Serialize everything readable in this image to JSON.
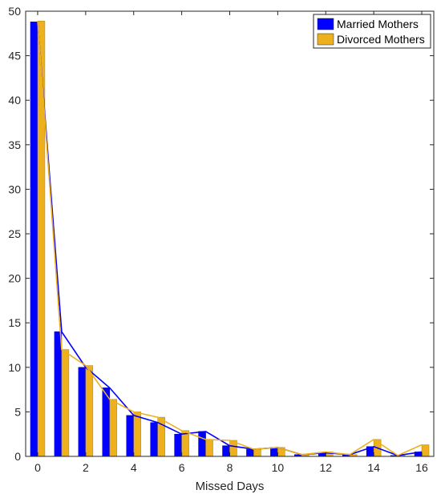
{
  "chart_data": {
    "type": "bar",
    "x": [
      0,
      1,
      2,
      3,
      4,
      5,
      6,
      7,
      8,
      9,
      10,
      11,
      12,
      13,
      14,
      15,
      16
    ],
    "series": [
      {
        "name": "Married Mothers",
        "color": "#0000ff",
        "values": [
          48.8,
          14.0,
          10.0,
          7.7,
          4.6,
          3.8,
          2.5,
          2.8,
          1.2,
          0.8,
          1.0,
          0.2,
          0.4,
          0.2,
          1.1,
          0.1,
          0.5
        ]
      },
      {
        "name": "Divorced Mothers",
        "color": "#edb120",
        "values": [
          48.9,
          12.0,
          10.2,
          6.4,
          5.0,
          4.4,
          2.9,
          1.9,
          1.8,
          0.8,
          1.0,
          0.2,
          0.5,
          0.2,
          1.9,
          0.1,
          1.3
        ]
      }
    ],
    "xlabel": "Missed Days",
    "ylabel": "",
    "xlim": [
      -0.5,
      16.5
    ],
    "ylim": [
      0,
      50
    ],
    "xticks": [
      0,
      2,
      4,
      6,
      8,
      10,
      12,
      14,
      16
    ],
    "yticks": [
      0,
      5,
      10,
      15,
      20,
      25,
      30,
      35,
      40,
      45,
      50
    ],
    "grid": false,
    "legend_position": "top-right",
    "overlay": "line"
  }
}
